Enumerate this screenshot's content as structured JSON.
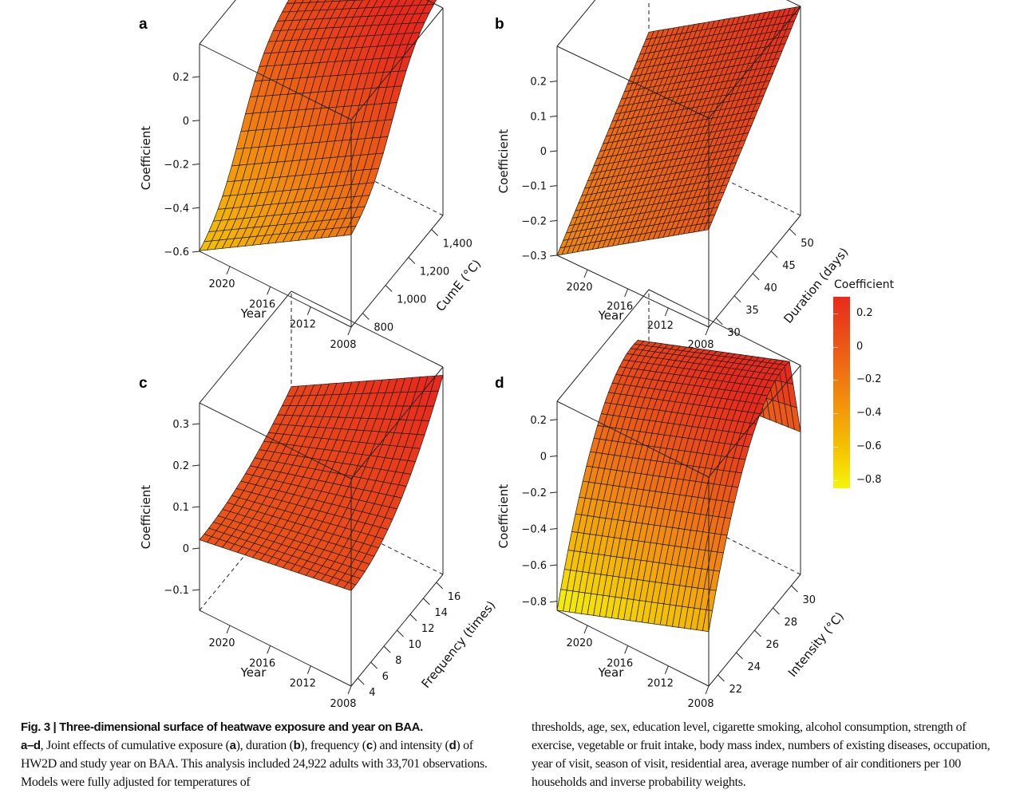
{
  "figure": {
    "colorscale": {
      "title": "Coefficient",
      "ticks": [
        "0.2",
        "0",
        "−0.2",
        "−0.4",
        "−0.6",
        "−0.8"
      ],
      "range": [
        -0.85,
        0.3
      ],
      "colors": [
        "#f5f50a",
        "#f5c400",
        "#f39a0a",
        "#ef7212",
        "#ea4d18",
        "#e82a1c"
      ]
    },
    "caption": {
      "left": {
        "fig_label": "Fig. 3 | ",
        "title": "Three-dimensional surface of heatwave exposure and year on BAA.",
        "range_label": "a–d",
        "t1": ", Joint effects of cumulative exposure (",
        "a": "a",
        "t2": "), duration (",
        "b": "b",
        "t3": "), frequency (",
        "c": "c",
        "t4": ") and intensity (",
        "d": "d",
        "t5": ") of HW2D and study year on BAA. This analysis included 24,922 adults with 33,701 observations. Models were fully adjusted for temperatures of"
      },
      "right": "thresholds, age, sex, education level, cigarette smoking, alcohol consumption, strength of exercise, vegetable or fruit intake, body mass index, numbers of existing diseases, occupation, year of visit, season of visit, residential area, average number of air conditioners per 100 households and inverse probability weights."
    }
  },
  "chart_data": [
    {
      "panel": "a",
      "type": "surface3d",
      "xlabel": "Year",
      "ylabel": "CumE (°C)",
      "zlabel": "Coefficient",
      "xlim": [
        2008,
        2023
      ],
      "ylim": [
        700,
        1500
      ],
      "zlim": [
        -0.6,
        0.35
      ],
      "xticks": [
        2008,
        2012,
        2016,
        2020
      ],
      "xtick_labels": [
        "2008",
        "2012",
        "2016",
        "2020"
      ],
      "yticks": [
        800,
        1000,
        1200,
        1400
      ],
      "ytick_labels": [
        "800",
        "1,000",
        "1,200",
        "1,400"
      ],
      "zticks": [
        -0.6,
        -0.4,
        -0.2,
        0,
        0.2
      ],
      "ztick_labels": [
        "−0.6",
        "−0.4",
        "−0.2",
        "0",
        "0.2"
      ],
      "surface_corners": {
        "year_2023_cume_700": -0.6,
        "year_2008_cume_700": -0.18,
        "year_2023_cume_1500": 0.05,
        "year_2008_cume_1500": 0.35
      },
      "shape": "rises with CumE (S-shaped), falls with later Year",
      "grid": [
        20,
        20
      ]
    },
    {
      "panel": "b",
      "type": "surface3d",
      "xlabel": "Year",
      "ylabel": "Duration (days)",
      "zlabel": "Coefficient",
      "xlim": [
        2008,
        2023
      ],
      "ylim": [
        28,
        53
      ],
      "zlim": [
        -0.3,
        0.3
      ],
      "xticks": [
        2008,
        2012,
        2016,
        2020
      ],
      "xtick_labels": [
        "2008",
        "2012",
        "2016",
        "2020"
      ],
      "yticks": [
        30,
        35,
        40,
        45,
        50
      ],
      "ytick_labels": [
        "30",
        "35",
        "40",
        "45",
        "50"
      ],
      "zticks": [
        -0.3,
        -0.2,
        -0.1,
        0,
        0.1,
        0.2
      ],
      "ztick_labels": [
        "−0.3",
        "−0.2",
        "−0.1",
        "0",
        "0.1",
        "0.2"
      ],
      "surface_corners": {
        "year_2023_dur_28": -0.3,
        "year_2008_dur_28": -0.02,
        "year_2023_dur_53": 0.02,
        "year_2008_dur_53": 0.3
      },
      "shape": "planar, rises with Duration, falls with later Year",
      "grid": [
        30,
        30
      ]
    },
    {
      "panel": "c",
      "type": "surface3d",
      "xlabel": "Year",
      "ylabel": "Frequency (times)",
      "zlabel": "Coefficient",
      "xlim": [
        2008,
        2023
      ],
      "ylim": [
        3,
        17
      ],
      "zlim": [
        -0.15,
        0.35
      ],
      "xticks": [
        2008,
        2012,
        2016,
        2020
      ],
      "xtick_labels": [
        "2008",
        "2012",
        "2016",
        "2020"
      ],
      "yticks": [
        4,
        6,
        8,
        10,
        12,
        14,
        16
      ],
      "ytick_labels": [
        "4",
        "6",
        "8",
        "10",
        "12",
        "14",
        "16"
      ],
      "zticks": [
        -0.1,
        0,
        0.1,
        0.2,
        0.3
      ],
      "ztick_labels": [
        "−0.1",
        "0",
        "0.1",
        "0.2",
        "0.3"
      ],
      "surface_corners": {
        "year_2023_freq_3": 0.03,
        "year_2008_freq_3": 0.1,
        "year_2023_freq_17": 0.12,
        "year_2008_freq_17": 0.33
      },
      "shape": "convex rise with Frequency, falls with later Year",
      "grid": [
        20,
        20
      ]
    },
    {
      "panel": "d",
      "type": "surface3d",
      "xlabel": "Year",
      "ylabel": "Intensity (°C)",
      "zlabel": "Coefficient",
      "xlim": [
        2008,
        2023
      ],
      "ylim": [
        21,
        31
      ],
      "zlim": [
        -0.85,
        0.3
      ],
      "xticks": [
        2008,
        2012,
        2016,
        2020
      ],
      "xtick_labels": [
        "2008",
        "2012",
        "2016",
        "2020"
      ],
      "yticks": [
        22,
        24,
        26,
        28,
        30
      ],
      "ytick_labels": [
        "22",
        "24",
        "26",
        "28",
        "30"
      ],
      "zticks": [
        -0.8,
        -0.6,
        -0.4,
        -0.2,
        0,
        0.2
      ],
      "ztick_labels": [
        "−0.8",
        "−0.6",
        "−0.4",
        "−0.2",
        "0",
        "0.2"
      ],
      "surface_corners": {
        "year_2023_int_21": -0.8,
        "year_2008_int_21": -0.55,
        "year_2023_int_31": 0.3,
        "year_2008_int_31": -0.1
      },
      "shape": "concave rise with Intensity peaking near 29-30 °C, falls with later Year",
      "grid": [
        25,
        25
      ]
    }
  ]
}
